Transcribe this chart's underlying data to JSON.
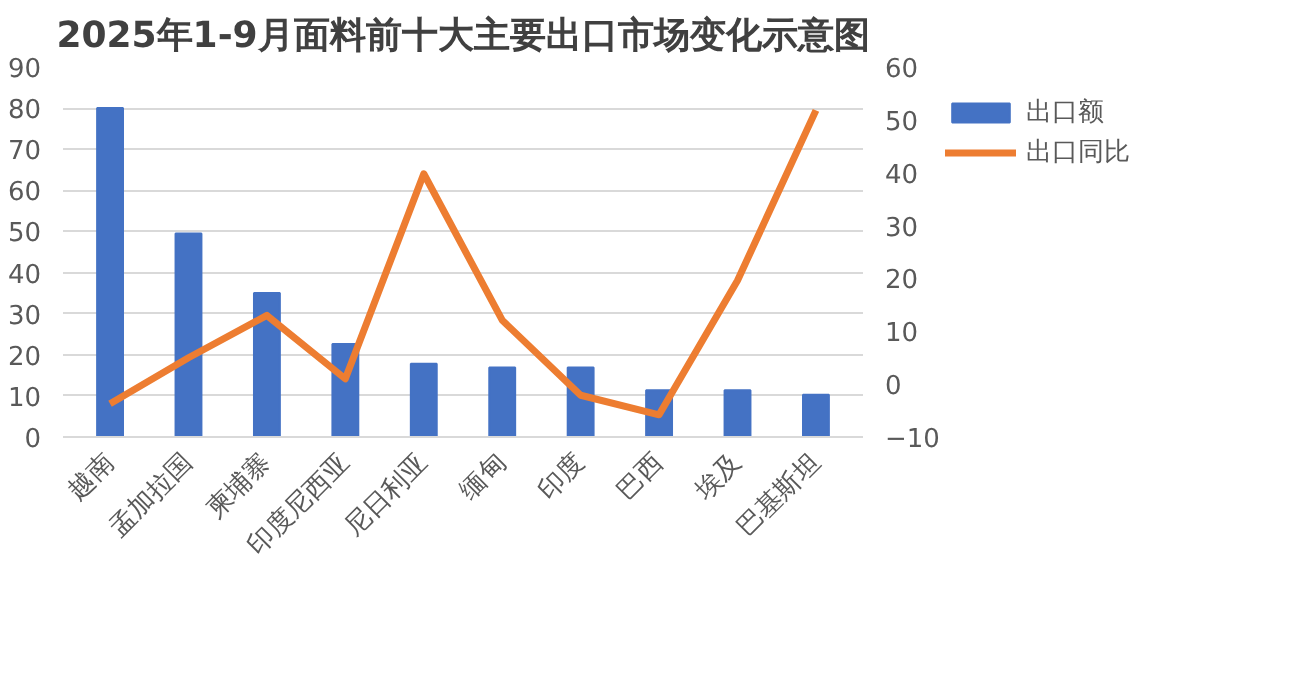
{
  "chart_data": {
    "type": "bar",
    "title": "2025年1-9月面料前十大主要出口市场变化示意图",
    "categories": [
      "越南",
      "孟加拉国",
      "柬埔寨",
      "印度尼西亚",
      "尼日利亚",
      "缅甸",
      "印度",
      "巴西",
      "埃及",
      "巴基斯坦"
    ],
    "series": [
      {
        "name": "出口额",
        "color": "#4472c4",
        "values": [
          80,
          49.5,
          35,
          22.6,
          17.8,
          16.9,
          16.9,
          11.4,
          11.4,
          10.3
        ]
      },
      {
        "name": "出口同比",
        "type": "line",
        "axis": "y2",
        "color": "#ed7d31",
        "values": [
          -3.7,
          5,
          13,
          1,
          39.8,
          12.1,
          -2.1,
          -5.8,
          19.6,
          51.8
        ]
      }
    ],
    "ylim": [
      0,
      90
    ],
    "yticks": [
      0,
      10,
      20,
      30,
      40,
      50,
      60,
      70,
      80,
      90
    ],
    "y2lim": [
      -10,
      60
    ],
    "y2ticks": [
      -10,
      0,
      10,
      20,
      30,
      40,
      50,
      60
    ],
    "grid": "y",
    "legend": "right"
  }
}
